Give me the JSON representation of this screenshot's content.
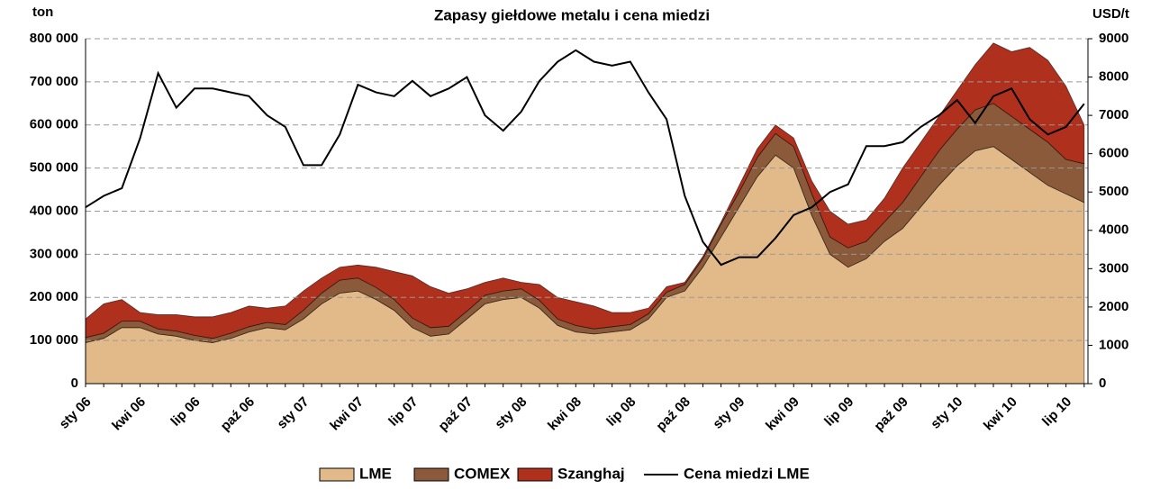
{
  "chart_data": {
    "type": "area",
    "title": "Zapasy giełdowe metalu i cena miedzi",
    "ylabel": "ton",
    "y2label": "USD/t",
    "categories": [
      "sty 06",
      null,
      null,
      "kwi 06",
      null,
      null,
      "lip 06",
      null,
      null,
      "paź 06",
      null,
      null,
      "sty 07",
      null,
      null,
      "kwi 07",
      null,
      null,
      "lip 07",
      null,
      null,
      "paź 07",
      null,
      null,
      "sty 08",
      null,
      null,
      "kwi 08",
      null,
      null,
      "lip 08",
      null,
      null,
      "paź 08",
      null,
      null,
      "sty 09",
      null,
      null,
      "kwi 09",
      null,
      null,
      "lip 09",
      null,
      null,
      "paź 09",
      null,
      null,
      "sty 10",
      null,
      null,
      "kwi 10",
      null,
      null,
      "lip 10",
      null
    ],
    "series": [
      {
        "name": "LME",
        "color": "#e2b988",
        "values": [
          95000,
          105000,
          130000,
          130000,
          115000,
          110000,
          100000,
          95000,
          105000,
          120000,
          130000,
          125000,
          150000,
          185000,
          210000,
          215000,
          195000,
          170000,
          130000,
          110000,
          115000,
          150000,
          185000,
          195000,
          200000,
          175000,
          135000,
          120000,
          115000,
          120000,
          125000,
          150000,
          200000,
          215000,
          270000,
          340000,
          410000,
          480000,
          530000,
          500000,
          390000,
          300000,
          270000,
          290000,
          330000,
          360000,
          410000,
          460000,
          505000,
          540000,
          550000,
          520000,
          490000,
          460000,
          440000,
          420000
        ]
      },
      {
        "name": "COMEX",
        "color": "#8a5a3a",
        "values": [
          12000,
          12000,
          15000,
          15000,
          12000,
          12000,
          12000,
          10000,
          12000,
          12000,
          12000,
          12000,
          20000,
          25000,
          30000,
          30000,
          28000,
          25000,
          22000,
          20000,
          18000,
          18000,
          20000,
          20000,
          20000,
          18000,
          15000,
          15000,
          12000,
          12000,
          12000,
          12000,
          12000,
          15000,
          20000,
          30000,
          35000,
          45000,
          50000,
          50000,
          50000,
          40000,
          45000,
          40000,
          45000,
          60000,
          70000,
          80000,
          85000,
          95000,
          100000,
          100000,
          100000,
          100000,
          80000,
          90000
        ]
      },
      {
        "name": "Szanghaj",
        "color": "#b0301e",
        "values": [
          43000,
          68000,
          50000,
          20000,
          33000,
          38000,
          43000,
          50000,
          48000,
          48000,
          33000,
          43000,
          45000,
          35000,
          30000,
          30000,
          47000,
          65000,
          98000,
          95000,
          77000,
          52000,
          30000,
          30000,
          15000,
          37000,
          50000,
          55000,
          53000,
          33000,
          28000,
          13000,
          13000,
          5000,
          5000,
          5000,
          15000,
          20000,
          20000,
          20000,
          30000,
          60000,
          55000,
          50000,
          55000,
          80000,
          80000,
          80000,
          90000,
          105000,
          140000,
          150000,
          190000,
          190000,
          170000,
          90000
        ]
      },
      {
        "name": "Cena miedzi LME",
        "color": "#000000",
        "type": "line",
        "axis": "y2",
        "values": [
          4600,
          4900,
          5100,
          6400,
          8100,
          7200,
          7700,
          7700,
          7600,
          7500,
          7000,
          6700,
          5700,
          5700,
          6500,
          7800,
          7600,
          7500,
          7900,
          7500,
          7700,
          8000,
          7000,
          6600,
          7100,
          7900,
          8400,
          8700,
          8400,
          8300,
          8400,
          7600,
          6900,
          4900,
          3700,
          3100,
          3300,
          3300,
          3800,
          4400,
          4600,
          5000,
          5200,
          6200,
          6200,
          6300,
          6700,
          7000,
          7400,
          6800,
          7500,
          7700,
          6900,
          6500,
          6700,
          7300
        ]
      }
    ],
    "ylim": [
      0,
      800000
    ],
    "yticks": [
      0,
      {
        "value": 100000,
        "label": "100 000"
      },
      {
        "value": 200000,
        "label": "200 000"
      },
      {
        "value": 300000,
        "label": "300 000"
      },
      {
        "value": 400000,
        "label": "400 000"
      },
      {
        "value": 500000,
        "label": "500 000"
      },
      {
        "value": 600000,
        "label": "600 000"
      },
      {
        "value": 700000,
        "label": "700 000"
      },
      {
        "value": 800000,
        "label": "800 000"
      }
    ],
    "y2lim": [
      0,
      9000
    ],
    "y2ticks": [
      0,
      1000,
      2000,
      3000,
      4000,
      5000,
      6000,
      7000,
      8000,
      9000
    ],
    "grid": true,
    "legend": "bottom"
  }
}
